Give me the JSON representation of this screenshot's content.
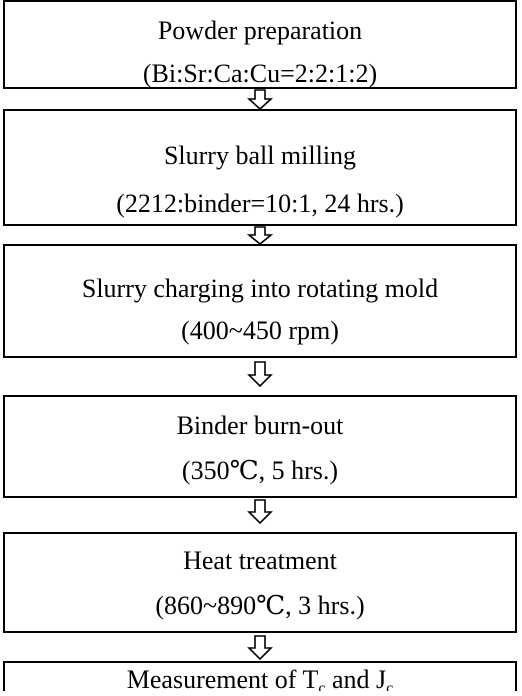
{
  "nodes": [
    {
      "lines": [
        [
          {
            "text": "Powder preparation"
          }
        ],
        [
          {
            "text": "(Bi:Sr:Ca:Cu=2:2:1:2)"
          }
        ]
      ]
    },
    {
      "lines": [
        [
          {
            "text": "Slurry ball milling"
          }
        ],
        [
          {
            "text": "(2212:binder=10:1, 24 hrs.)"
          }
        ]
      ]
    },
    {
      "lines": [
        [
          {
            "text": "Slurry charging into rotating mold"
          }
        ],
        [
          {
            "text": "(400~450 rpm)"
          }
        ]
      ]
    },
    {
      "lines": [
        [
          {
            "text": "Binder burn-out"
          }
        ],
        [
          {
            "text": "(350℃, 5 hrs.)"
          }
        ]
      ]
    },
    {
      "lines": [
        [
          {
            "text": "Heat treatment"
          }
        ],
        [
          {
            "text": "(860~890℃, 3 hrs.)"
          }
        ]
      ]
    },
    {
      "lines": [
        [
          {
            "text": "Measurement of T"
          },
          {
            "text": "c",
            "sub": true
          },
          {
            "text": " and J"
          },
          {
            "text": "c",
            "sub": true
          }
        ]
      ]
    }
  ]
}
